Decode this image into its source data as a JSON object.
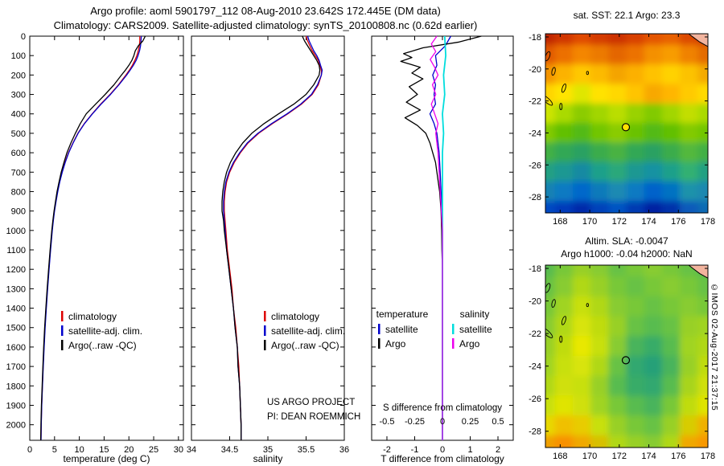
{
  "title": {
    "line1": "Argo profile: aoml 5901797_112 08-Aug-2010 23.642S 172.445E (DM data)",
    "line2": "Climatology: CARS2009. Satellite-adjusted climatology: synTS_20100808.nc (0.62d earlier)"
  },
  "credit": "©IMOS 02-Aug-2017 21:37:15",
  "chart_data": {
    "type": "line",
    "depth_lim": [
      0,
      2080
    ],
    "depth_ticks": [
      0,
      100,
      200,
      300,
      400,
      500,
      600,
      700,
      800,
      900,
      1000,
      1100,
      1200,
      1300,
      1400,
      1500,
      1600,
      1700,
      1800,
      1900,
      2000
    ],
    "depth_m": [
      0,
      25,
      50,
      75,
      100,
      125,
      150,
      175,
      200,
      250,
      300,
      350,
      400,
      450,
      500,
      550,
      600,
      650,
      700,
      750,
      800,
      850,
      900,
      950,
      1000,
      1100,
      1200,
      1300,
      1400,
      1500,
      1600,
      1700,
      1800,
      1900,
      2000,
      2080
    ],
    "panels": {
      "temperature": {
        "xlabel": "temperature (deg C)",
        "xlim": [
          0,
          31
        ],
        "xticks": [
          0,
          5,
          10,
          15,
          20,
          25,
          30
        ],
        "legend": [
          {
            "label": "climatology",
            "color": "#dd0000"
          },
          {
            "label": "satellite-adj. clim.",
            "color": "#0000cc"
          },
          {
            "label": "Argo(..raw -QC)",
            "color": "#000000"
          }
        ],
        "series": [
          {
            "name": "climatology",
            "color": "#dd0000",
            "values": [
              22.2,
              22.2,
              22.1,
              21.9,
              21.6,
              21.2,
              20.7,
              20.1,
              19.4,
              17.9,
              16.2,
              14.3,
              12.6,
              11.0,
              9.7,
              8.7,
              7.8,
              7.1,
              6.5,
              6.0,
              5.6,
              5.25,
              4.95,
              4.7,
              4.5,
              4.15,
              3.85,
              3.55,
              3.3,
              3.05,
              2.85,
              2.7,
              2.55,
              2.4,
              2.3,
              2.25
            ]
          },
          {
            "name": "satellite-adjusted climatology",
            "color": "#0000cc",
            "values": [
              22.5,
              22.45,
              22.35,
              22.15,
              21.85,
              21.45,
              20.9,
              20.25,
              19.55,
              18.0,
              16.3,
              14.4,
              12.65,
              11.05,
              9.75,
              8.75,
              7.85,
              7.15,
              6.55,
              6.05,
              5.65,
              5.3,
              5.0,
              4.75,
              4.55,
              4.2,
              3.9,
              3.6,
              3.35,
              3.1,
              2.9,
              2.72,
              2.57,
              2.42,
              2.32,
              2.27
            ]
          },
          {
            "name": "Argo raw -QC",
            "color": "#000000",
            "values": [
              23.3,
              22.8,
              21.9,
              21.3,
              21.0,
              20.6,
              20.0,
              19.3,
              18.5,
              17.0,
              15.2,
              13.3,
              11.4,
              10.2,
              9.2,
              8.3,
              7.5,
              6.9,
              6.35,
              5.9,
              5.5,
              5.2,
              4.9,
              4.65,
              4.45,
              4.1,
              3.8,
              3.5,
              3.25,
              3.0,
              2.8,
              2.65,
              2.5,
              2.35,
              2.25,
              2.2
            ]
          }
        ]
      },
      "salinity": {
        "xlabel": "salinity",
        "xlim": [
          34,
          36
        ],
        "xticks": [
          34,
          34.5,
          35,
          35.5,
          36
        ],
        "legend": [
          {
            "label": "climatology",
            "color": "#dd0000"
          },
          {
            "label": "satellite-adj. clim.",
            "color": "#0000cc"
          },
          {
            "label": "Argo(..raw -QC)",
            "color": "#000000"
          }
        ],
        "notes": [
          "US ARGO PROJECT",
          "PI: DEAN ROEMMICH"
        ],
        "series": [
          {
            "name": "climatology",
            "color": "#dd0000",
            "values": [
              35.5,
              35.52,
              35.55,
              35.58,
              35.62,
              35.66,
              35.68,
              35.7,
              35.7,
              35.66,
              35.58,
              35.44,
              35.26,
              35.06,
              34.88,
              34.74,
              34.64,
              34.56,
              34.5,
              34.46,
              34.44,
              34.43,
              34.43,
              34.44,
              34.45,
              34.47,
              34.5,
              34.53,
              34.55,
              34.58,
              34.6,
              34.62,
              34.63,
              34.64,
              34.65,
              34.65
            ]
          },
          {
            "name": "satellite-adjusted climatology",
            "color": "#0000cc",
            "values": [
              35.52,
              35.54,
              35.57,
              35.6,
              35.64,
              35.67,
              35.69,
              35.71,
              35.7,
              35.65,
              35.57,
              35.43,
              35.25,
              35.05,
              34.87,
              34.73,
              34.63,
              34.55,
              34.49,
              34.45,
              34.43,
              34.42,
              34.42,
              34.43,
              34.44,
              34.46,
              34.49,
              34.52,
              34.55,
              34.57,
              34.6,
              34.61,
              34.63,
              34.64,
              34.65,
              34.65
            ]
          },
          {
            "name": "Argo raw -QC",
            "color": "#000000",
            "values": [
              35.45,
              35.48,
              35.52,
              35.56,
              35.6,
              35.64,
              35.67,
              35.68,
              35.67,
              35.6,
              35.5,
              35.34,
              35.14,
              34.95,
              34.79,
              34.67,
              34.58,
              34.51,
              34.46,
              34.43,
              34.41,
              34.4,
              34.4,
              34.42,
              34.43,
              34.46,
              34.49,
              34.52,
              34.55,
              34.57,
              34.6,
              34.61,
              34.63,
              34.64,
              34.65,
              34.65
            ]
          }
        ]
      },
      "difference": {
        "xlabel": "T difference from climatology",
        "xlim": [
          -2.55,
          2.55
        ],
        "xticks": [
          -2,
          -1,
          0,
          1,
          2
        ],
        "s_axis": {
          "label": "S difference from climatology",
          "lim": [
            -0.6375,
            0.6375
          ],
          "ticks": [
            -0.5,
            -0.25,
            0,
            0.25,
            0.5
          ]
        },
        "legend_headers": [
          "temperature",
          "salinity"
        ],
        "legend_columns": [
          [
            {
              "label": "satellite",
              "color": "#0000cc"
            },
            {
              "label": "Argo",
              "color": "#000000"
            }
          ],
          [
            {
              "label": "satellite",
              "color": "#00dddd"
            },
            {
              "label": "Argo",
              "color": "#ee00ee"
            }
          ]
        ],
        "series": [
          {
            "name": "T satellite minus climatology",
            "scale": "T",
            "color": "#0000cc",
            "width": 1.3,
            "depth": [
              0,
              50,
              100,
              150,
              200,
              250,
              300,
              350,
              400,
              450,
              500,
              600,
              700,
              800,
              900,
              1000,
              1200,
              1400,
              1600,
              1800,
              2000,
              2080
            ],
            "values": [
              0.3,
              0.1,
              -0.25,
              -0.2,
              -0.35,
              -0.25,
              -0.3,
              -0.25,
              -0.45,
              -0.3,
              -0.2,
              -0.12,
              -0.08,
              -0.05,
              -0.02,
              0,
              0,
              0,
              0,
              0,
              0,
              0
            ]
          },
          {
            "name": "T Argo minus climatology",
            "scale": "T",
            "color": "#000000",
            "width": 1.3,
            "depth": [
              0,
              30,
              60,
              90,
              110,
              130,
              160,
              190,
              220,
              260,
              300,
              340,
              380,
              420,
              460,
              500,
              550,
              600,
              650,
              700,
              750,
              800,
              900,
              1000,
              1100,
              1200,
              1400,
              1600,
              1800,
              2000,
              2080
            ],
            "values": [
              1.4,
              0.6,
              -0.7,
              -1.4,
              -1.1,
              -1.5,
              -0.8,
              -1.1,
              -0.7,
              -1.2,
              -0.9,
              -1.3,
              -0.8,
              -1.35,
              -0.9,
              -0.6,
              -0.45,
              -0.35,
              -0.25,
              -0.2,
              -0.15,
              -0.1,
              -0.05,
              -0.03,
              -0.02,
              0,
              0,
              0,
              0,
              0,
              0
            ]
          },
          {
            "name": "S satellite minus climatology",
            "scale": "S",
            "color": "#00dddd",
            "width": 1.8,
            "depth": [
              0,
              100,
              200,
              300,
              400,
              500,
              600,
              700,
              800,
              900,
              1000,
              1200,
              1400,
              1600,
              1800,
              2000,
              2080
            ],
            "values": [
              0.02,
              0.03,
              0.01,
              0.02,
              0,
              0.01,
              0,
              0,
              0,
              0,
              0,
              0,
              0,
              0,
              0,
              0,
              0
            ]
          },
          {
            "name": "S Argo minus climatology",
            "scale": "S",
            "color": "#ee00ee",
            "width": 1.3,
            "depth": [
              0,
              40,
              80,
              120,
              160,
              200,
              250,
              300,
              350,
              400,
              450,
              500,
              600,
              700,
              800,
              900,
              1000,
              1200,
              1400,
              1600,
              1800,
              2000,
              2080
            ],
            "values": [
              -0.05,
              -0.1,
              -0.06,
              -0.11,
              -0.07,
              -0.04,
              -0.09,
              -0.06,
              -0.1,
              -0.07,
              -0.04,
              -0.06,
              -0.04,
              -0.03,
              -0.02,
              -0.01,
              0,
              0,
              0,
              0,
              0,
              0,
              0
            ]
          }
        ]
      }
    },
    "maps": {
      "sst": {
        "type": "heatmap",
        "title": "sat. SST: 22.1  Argo: 23.3",
        "lonlim": [
          167,
          178
        ],
        "latlim": [
          -17.8,
          -29
        ],
        "lonticks": [
          168,
          170,
          172,
          174,
          176,
          178
        ],
        "latticks": [
          -18,
          -20,
          -22,
          -24,
          -26,
          -28
        ],
        "marker": {
          "lon": 172.445,
          "lat": -23.642,
          "style": "filled",
          "fill": "#ffe000"
        },
        "grid": [
          [
            "#c02800",
            "#d03400",
            "#e04800",
            "#d43a00",
            "#cc3000",
            "#d84000",
            "#e45400",
            "#e86000",
            "#dc4a00",
            "#d03800"
          ],
          [
            "#e05800",
            "#ec7000",
            "#f48600",
            "#ec7a00",
            "#e46600",
            "#ec7200",
            "#f49000",
            "#f89c00",
            "#f08200",
            "#e46c00"
          ],
          [
            "#f49400",
            "#fcb200",
            "#ffc800",
            "#fcba00",
            "#f4a400",
            "#fcb000",
            "#ffc200",
            "#ffd200",
            "#fcc200",
            "#f4aa00"
          ],
          [
            "#ffd400",
            "#ffe400",
            "#e0e600",
            "#ffe200",
            "#ffd800",
            "#ffc400",
            "#f8a800",
            "#ffb600",
            "#ffca00",
            "#ffda00"
          ],
          [
            "#cce400",
            "#aada00",
            "#8ccc00",
            "#a2d600",
            "#bade00",
            "#9ad200",
            "#82ca00",
            "#a2d600",
            "#c2de00",
            "#aada00"
          ],
          [
            "#82ca00",
            "#62c000",
            "#52ba14",
            "#72c600",
            "#8acc00",
            "#6ac200",
            "#52ba14",
            "#62c000",
            "#82ca00",
            "#72c600"
          ],
          [
            "#42b044",
            "#32a854",
            "#2aa162",
            "#3aac4c",
            "#4ab242",
            "#32a854",
            "#2aa162",
            "#3aac4c",
            "#52b83e",
            "#42b044"
          ],
          [
            "#22a082",
            "#1a9892",
            "#128aa2",
            "#1aa08a",
            "#2aa87a",
            "#1a9892",
            "#1292a2",
            "#1aa08a",
            "#32b072",
            "#22a082"
          ],
          [
            "#1482b2",
            "#0a7ac2",
            "#0468ca",
            "#0a7aba",
            "#1a8ab2",
            "#0a7ac2",
            "#0462ca",
            "#0472c2",
            "#1a92aa",
            "#1a88b0"
          ],
          [
            "#044ac2",
            "#023aba",
            "#022aaa",
            "#0242ba",
            "#0452c2",
            "#023ab2",
            "#0222a2",
            "#0232aa",
            "#0a5aba",
            "#0c6ab4"
          ]
        ]
      },
      "sla": {
        "type": "heatmap",
        "title_line1": "Altim. SLA: -0.0047",
        "title_line2": "Argo h1000: -0.04 h2000: NaN",
        "lonlim": [
          167,
          178
        ],
        "latlim": [
          -17.8,
          -29
        ],
        "lonticks": [
          168,
          170,
          172,
          174,
          176,
          178
        ],
        "latticks": [
          -18,
          -20,
          -22,
          -24,
          -26,
          -28
        ],
        "marker": {
          "lon": 172.445,
          "lat": -23.642,
          "style": "open"
        },
        "grid": [
          [
            "#58bc50",
            "#78c838",
            "#98d028",
            "#88cc30",
            "#68c244",
            "#78c838",
            "#88cc30",
            "#78c838",
            "#68c244",
            "#58bc50"
          ],
          [
            "#68c244",
            "#88cc30",
            "#b0d818",
            "#98d028",
            "#78c838",
            "#68c244",
            "#78c838",
            "#88cc30",
            "#78c838",
            "#68c244"
          ],
          [
            "#78c838",
            "#a0d420",
            "#c8e010",
            "#b0d818",
            "#88cc30",
            "#78c838",
            "#68c244",
            "#78c838",
            "#88cc30",
            "#78c838"
          ],
          [
            "#88cc30",
            "#b0d818",
            "#d8e408",
            "#c0dc10",
            "#98d028",
            "#68c244",
            "#58bc50",
            "#68c244",
            "#98d028",
            "#a0d420"
          ],
          [
            "#98d028",
            "#c0dc10",
            "#e8e800",
            "#c8e010",
            "#88cc30",
            "#48b45c",
            "#38ac68",
            "#58bc50",
            "#a0d420",
            "#b0d818"
          ],
          [
            "#a0d420",
            "#c8e010",
            "#d8e408",
            "#b0d818",
            "#68c244",
            "#30a870",
            "#28a078",
            "#48b45c",
            "#98d028",
            "#c0dc10"
          ],
          [
            "#b0d818",
            "#d0e008",
            "#c8e010",
            "#98d028",
            "#58bc50",
            "#38ac68",
            "#30a870",
            "#58bc50",
            "#a8d41c",
            "#d0e008"
          ],
          [
            "#c8e010",
            "#e0e400",
            "#d0e008",
            "#a0d420",
            "#78c838",
            "#58bc50",
            "#48b45c",
            "#78c838",
            "#c0dc10",
            "#e0e400"
          ],
          [
            "#e8d800",
            "#f0c000",
            "#e8cc00",
            "#c8e010",
            "#98d028",
            "#78c838",
            "#68c244",
            "#98d028",
            "#d8cc00",
            "#f0b000"
          ],
          [
            "#f0a000",
            "#f89000",
            "#f0a800",
            "#d8c000",
            "#b0d818",
            "#98d028",
            "#88cc30",
            "#b0d818",
            "#f0a800",
            "#f89800"
          ]
        ]
      }
    }
  }
}
